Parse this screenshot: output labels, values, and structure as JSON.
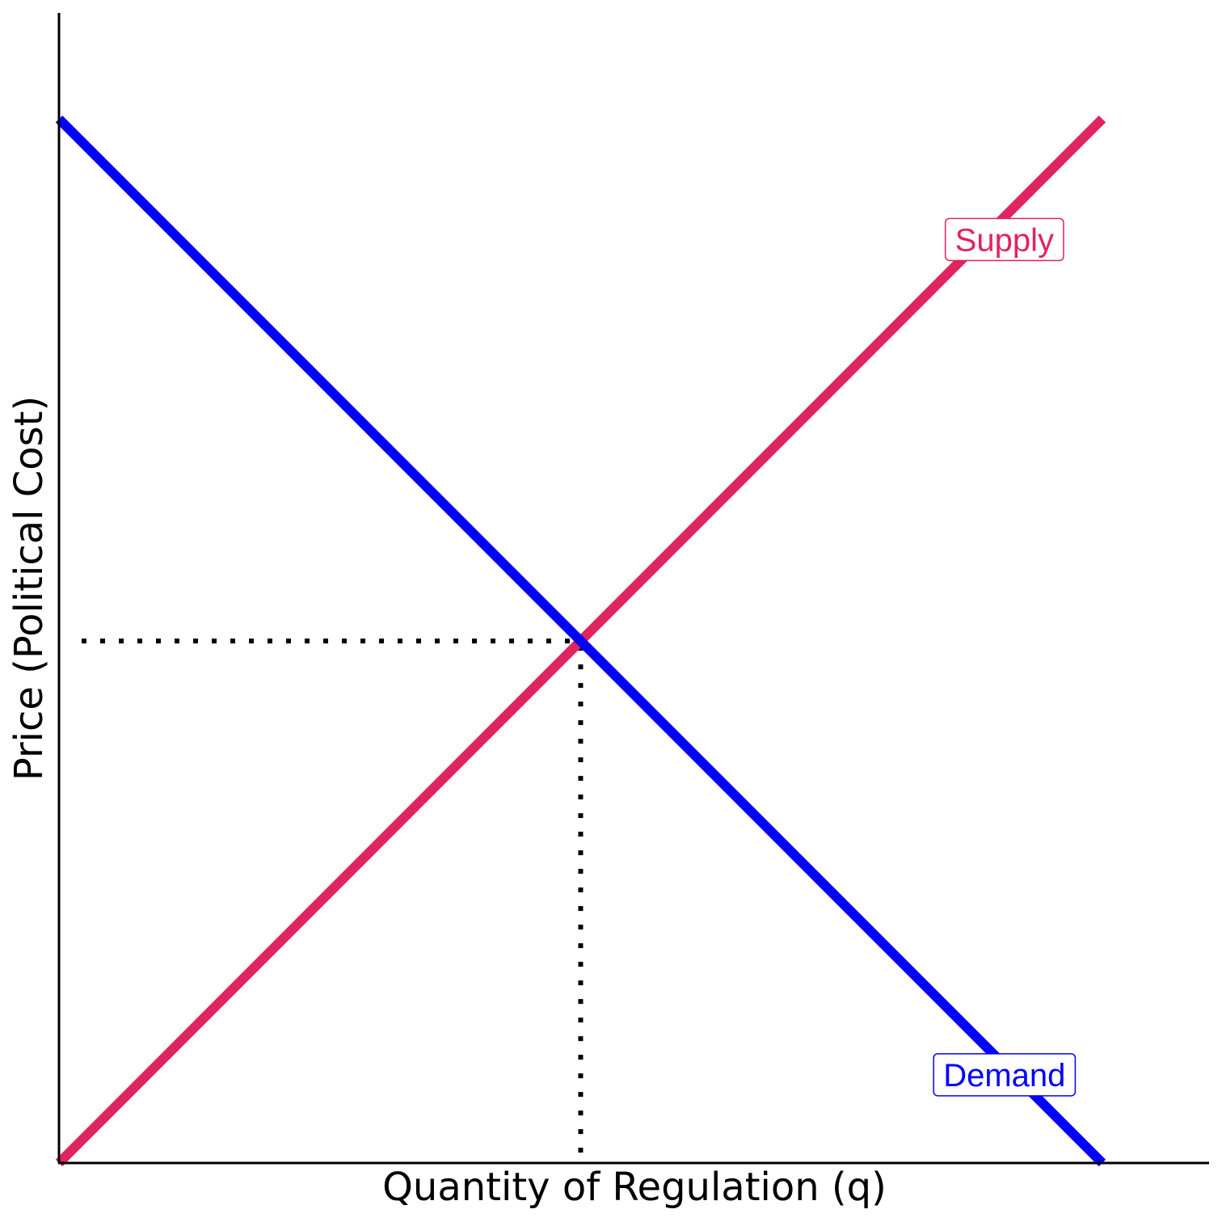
{
  "chart_data": {
    "type": "line",
    "title": "",
    "xlabel": "Quantity of Regulation (q)",
    "ylabel": "Price (Political Cost)",
    "xlim": [
      0,
      11
    ],
    "ylim": [
      0,
      11
    ],
    "grid": false,
    "ticks": false,
    "series": [
      {
        "name": "Supply",
        "color": "#e0245e",
        "x": [
          0,
          10
        ],
        "y": [
          0,
          10
        ],
        "label_at": [
          9,
          9
        ]
      },
      {
        "name": "Demand",
        "color": "#0000ff",
        "x": [
          0,
          10
        ],
        "y": [
          10,
          0
        ],
        "label_at": [
          9,
          1
        ]
      }
    ],
    "equilibrium": {
      "x": 5,
      "y": 5,
      "guide_lines": "dotted",
      "guide_color": "#000000"
    }
  }
}
